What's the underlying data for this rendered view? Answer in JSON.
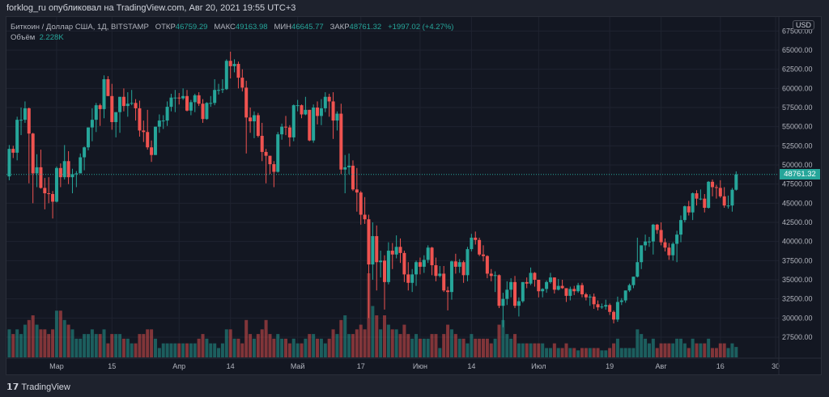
{
  "header": {
    "published": "forklog_ru опубликовал на TradingView.com, Авг 20, 2021 19:55 UTC+3"
  },
  "legend": {
    "symbol": "Биткоин / Доллар США, 1Д, BITSTAMP",
    "open_label": "ОТКР",
    "open": "46759.29",
    "high_label": "МАКС",
    "high": "49163.98",
    "low_label": "МИН",
    "low": "46645.77",
    "close_label": "ЗАКР",
    "close": "48761.32",
    "change": "+1997.02 (+4.27%)",
    "volume_label": "Объём",
    "volume": "2.228K"
  },
  "footer": {
    "brand": "TradingView",
    "logo_icon": "tradingview-logo-icon"
  },
  "colors": {
    "up": "#26a69a",
    "down": "#ef5350",
    "background": "#131722"
  },
  "chart_data": {
    "type": "candlestick",
    "symbol": "BTCUSD",
    "interval": "1D",
    "currency": "USD",
    "last_price": 48761.32,
    "last_price_label": "48761.32",
    "ylim": [
      25000,
      67500
    ],
    "y_ticks": [
      "27500.00",
      "30000.00",
      "32500.00",
      "35000.00",
      "37500.00",
      "40000.00",
      "42500.00",
      "45000.00",
      "47500.00",
      "50000.00",
      "52500.00",
      "55000.00",
      "57500.00",
      "60000.00",
      "62500.00",
      "65000.00",
      "67500.00"
    ],
    "x_ticks": [
      {
        "label": "Мар",
        "date": "2021-03-01"
      },
      {
        "label": "15",
        "date": "2021-03-15"
      },
      {
        "label": "Апр",
        "date": "2021-04-01"
      },
      {
        "label": "14",
        "date": "2021-04-14"
      },
      {
        "label": "Май",
        "date": "2021-05-01"
      },
      {
        "label": "17",
        "date": "2021-05-17"
      },
      {
        "label": "Июн",
        "date": "2021-06-01"
      },
      {
        "label": "14",
        "date": "2021-06-14"
      },
      {
        "label": "Июл",
        "date": "2021-07-01"
      },
      {
        "label": "19",
        "date": "2021-07-19"
      },
      {
        "label": "Авг",
        "date": "2021-08-01"
      },
      {
        "label": "16",
        "date": "2021-08-16"
      },
      {
        "label": "30",
        "date": "2021-08-30"
      }
    ],
    "grid": true,
    "first_candle_date": "2021-02-17",
    "first_open": 48500,
    "close": [
      52100,
      51600,
      55900,
      55900,
      57400,
      54100,
      48900,
      49700,
      47000,
      46300,
      46200,
      45200,
      49600,
      48400,
      50500,
      48400,
      48800,
      48900,
      51000,
      52300,
      54900,
      55900,
      57800,
      57300,
      61200,
      59000,
      55600,
      56900,
      58900,
      57700,
      58000,
      58100,
      57400,
      54500,
      54300,
      52300,
      51300,
      55000,
      55800,
      55800,
      57600,
      58800,
      58800,
      58700,
      59000,
      57100,
      58200,
      59100,
      58000,
      56000,
      58100,
      58100,
      59800,
      59800,
      59900,
      63600,
      62900,
      63200,
      61400,
      60100,
      56200,
      55700,
      56500,
      53800,
      51700,
      51200,
      50100,
      49100,
      54000,
      55000,
      54900,
      53600,
      57800,
      57800,
      56600,
      57200,
      53200,
      57500,
      56400,
      57400,
      58900,
      58300,
      55800,
      56700,
      49400,
      49700,
      49900,
      46800,
      46400,
      43500,
      42900,
      37000,
      40700,
      37300,
      37500,
      34700,
      38800,
      38300,
      39300,
      38500,
      35700,
      34600,
      35700,
      37300,
      36700,
      37600,
      39200,
      36900,
      35500,
      35800,
      33600,
      33400,
      37400,
      36700,
      37300,
      35600,
      39000,
      40500,
      40200,
      38300,
      38100,
      35800,
      35500,
      35600,
      31600,
      32500,
      33700,
      34700,
      31600,
      32200,
      34700,
      34500,
      35900,
      35000,
      33500,
      33800,
      34700,
      35300,
      33700,
      34200,
      33900,
      32900,
      33800,
      33500,
      34300,
      33100,
      32700,
      32800,
      31800,
      31400,
      31500,
      31700,
      30800,
      29800,
      32100,
      32300,
      33600,
      34300,
      35400,
      37300,
      39500,
      40000,
      40000,
      42200,
      41500,
      39900,
      39200,
      38200,
      39700,
      40900,
      42800,
      44600,
      43800,
      46300,
      45600,
      45600,
      44400,
      47800,
      47100,
      47000,
      45900,
      44700,
      44700,
      46759.29,
      48761.32
    ],
    "high": [
      52600,
      52500,
      56300,
      57500,
      58300,
      57500,
      54200,
      51400,
      52000,
      48300,
      48400,
      46600,
      49800,
      50200,
      52600,
      51800,
      49500,
      49200,
      51500,
      52400,
      54900,
      57400,
      58100,
      58000,
      61700,
      61600,
      60600,
      56900,
      58900,
      60000,
      59500,
      59800,
      58600,
      58400,
      55800,
      57200,
      53200,
      55000,
      56600,
      56500,
      58300,
      59300,
      59800,
      59400,
      60000,
      59800,
      58500,
      59300,
      59500,
      58600,
      58200,
      59000,
      61200,
      60600,
      61200,
      63800,
      64800,
      63800,
      63500,
      62500,
      61000,
      57500,
      57000,
      56800,
      55500,
      52100,
      51200,
      50500,
      54300,
      55400,
      56400,
      55200,
      57900,
      58500,
      57900,
      58900,
      57200,
      57900,
      58300,
      58600,
      59500,
      59300,
      59500,
      57000,
      58000,
      51300,
      51500,
      50600,
      49600,
      46600,
      45800,
      43500,
      42500,
      42100,
      38800,
      38200,
      39900,
      39800,
      40800,
      40400,
      38800,
      37300,
      36400,
      37500,
      37900,
      38200,
      39500,
      39300,
      37900,
      36800,
      36800,
      34100,
      37500,
      38400,
      37700,
      37500,
      39300,
      41000,
      41300,
      40500,
      39500,
      38200,
      36400,
      36100,
      35700,
      33300,
      34800,
      35200,
      35500,
      32700,
      34700,
      35300,
      36600,
      36000,
      35000,
      33900,
      34900,
      35900,
      35300,
      35100,
      35000,
      33900,
      34100,
      34200,
      34600,
      34600,
      33300,
      33100,
      33200,
      32300,
      31900,
      32400,
      31900,
      31000,
      32800,
      32600,
      33600,
      34500,
      35400,
      40500,
      39500,
      40900,
      40600,
      42300,
      42300,
      42500,
      40400,
      39800,
      39900,
      41400,
      43400,
      44700,
      45300,
      46400,
      46700,
      46800,
      46200,
      47900,
      48100,
      47400,
      48000,
      47100,
      46000,
      47000,
      49163.98
    ],
    "low": [
      48000,
      50900,
      50600,
      53900,
      55500,
      47600,
      45000,
      47100,
      46900,
      44200,
      45000,
      43000,
      45100,
      47100,
      48100,
      47500,
      46300,
      47100,
      48900,
      49300,
      51900,
      53100,
      54300,
      55100,
      56100,
      59000,
      54600,
      53600,
      54200,
      57000,
      56300,
      57800,
      55800,
      53700,
      53000,
      52000,
      50400,
      51300,
      54200,
      54700,
      55100,
      57000,
      56900,
      57900,
      58500,
      57000,
      56500,
      56900,
      57700,
      55500,
      55900,
      57600,
      57800,
      59200,
      59400,
      59800,
      61300,
      62100,
      60000,
      59600,
      51500,
      54200,
      53500,
      53600,
      50500,
      47600,
      48800,
      47100,
      49000,
      53300,
      53900,
      52400,
      53100,
      57000,
      56100,
      56500,
      53100,
      52900,
      55300,
      55200,
      56900,
      56300,
      53400,
      54500,
      48800,
      46300,
      48800,
      46600,
      43900,
      42200,
      42300,
      30000,
      35000,
      33600,
      35300,
      31100,
      34400,
      36400,
      37800,
      37200,
      34700,
      33600,
      33400,
      34200,
      35700,
      35900,
      37200,
      35600,
      34800,
      35300,
      33400,
      31000,
      32400,
      35800,
      35900,
      34600,
      34800,
      38700,
      39600,
      38100,
      37400,
      35200,
      34800,
      33400,
      31300,
      28800,
      31700,
      32700,
      31300,
      30200,
      32000,
      33900,
      34300,
      34100,
      32700,
      32700,
      33300,
      34500,
      33200,
      33600,
      33800,
      32100,
      32300,
      33000,
      33300,
      32700,
      32300,
      31600,
      31200,
      31000,
      31200,
      31100,
      30400,
      29300,
      29500,
      31700,
      32000,
      33400,
      33900,
      35300,
      36400,
      38800,
      39300,
      38300,
      41000,
      39500,
      38700,
      37600,
      37500,
      37300,
      39900,
      42500,
      43400,
      42800,
      44700,
      45400,
      43800,
      44300,
      45900,
      45600,
      45700,
      44400,
      44300,
      43900,
      46645.77
    ],
    "volume_unit": "K",
    "volume": [
      6,
      5,
      6,
      5,
      7,
      8,
      9,
      7,
      6,
      6,
      5,
      6,
      10,
      10,
      8,
      7,
      6,
      4,
      4,
      5,
      5,
      6,
      5,
      5,
      6,
      3,
      5,
      5,
      5,
      4,
      4,
      3,
      3,
      5,
      5,
      6,
      6,
      4,
      2,
      3,
      3,
      3,
      3,
      3,
      3,
      3,
      3,
      3,
      4,
      5,
      4,
      3,
      3,
      2,
      3,
      6,
      6,
      4,
      4,
      3,
      8,
      5,
      4,
      5,
      6,
      8,
      5,
      4,
      5,
      4,
      4,
      3,
      4,
      3,
      3,
      4,
      5,
      5,
      4,
      4,
      3,
      4,
      6,
      5,
      8,
      9,
      5,
      5,
      6,
      7,
      6,
      18,
      11,
      9,
      6,
      9,
      7,
      6,
      6,
      5,
      7,
      5,
      4,
      5,
      4,
      4,
      4,
      5,
      5,
      2,
      5,
      7,
      6,
      5,
      4,
      4,
      3,
      5,
      4,
      4,
      4,
      4,
      3,
      4,
      7,
      8,
      5,
      4,
      5,
      3,
      3,
      3,
      3,
      3,
      3,
      3,
      2,
      2,
      3,
      2,
      2,
      3,
      2,
      2,
      1.5,
      2,
      2,
      2,
      2,
      2,
      1.5,
      1.5,
      2,
      3,
      4,
      2,
      2,
      2,
      2,
      6,
      5,
      4,
      3,
      4,
      2,
      3,
      3,
      3,
      3,
      4,
      4,
      3,
      2,
      4,
      3,
      3,
      3,
      4,
      2,
      2,
      3,
      3,
      2,
      3,
      2.228
    ]
  }
}
